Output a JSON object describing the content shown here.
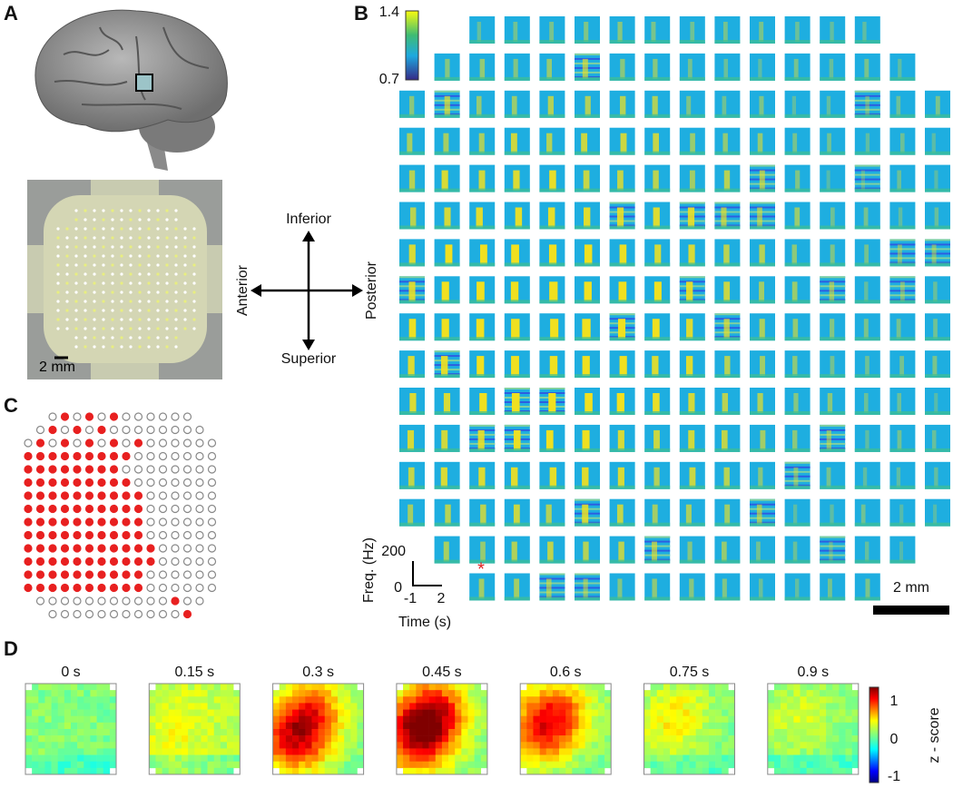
{
  "panels": {
    "a": {
      "label": "A",
      "scale_bar": "2 mm",
      "orientation": {
        "inferior": "Inferior",
        "superior": "Superior",
        "anterior": "Anterior",
        "posterior": "Posterior"
      }
    },
    "b": {
      "label": "B",
      "colorbar": {
        "max": "1.4",
        "min": "0.7"
      },
      "freq_axis": {
        "title": "Freq. (Hz)",
        "top": "200",
        "bottom": "0"
      },
      "time_axis": {
        "title": "Time (s)",
        "start": "-1",
        "end": "2"
      },
      "marker": "*",
      "scale_bar": "2 mm"
    },
    "c": {
      "label": "C"
    },
    "d": {
      "label": "D",
      "frames": [
        "0 s",
        "0.15 s",
        "0.3 s",
        "0.45 s",
        "0.6 s",
        "0.75 s",
        "0.9 s"
      ],
      "colorbar": {
        "title": "z - score",
        "top": "1",
        "middle": "0",
        "bottom": "-1"
      }
    }
  }
}
